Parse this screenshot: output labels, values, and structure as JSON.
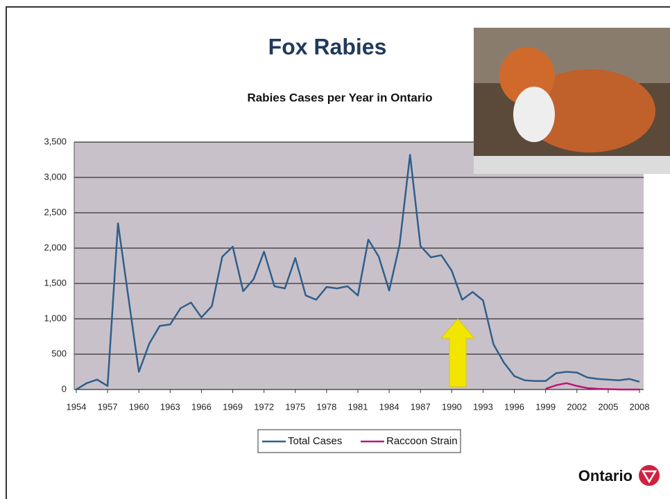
{
  "chart_data": {
    "type": "line",
    "title": "Fox Rabies",
    "subtitle": "Rabies Cases per Year in Ontario",
    "logo": "Ontario",
    "x": [
      1954,
      1955,
      1956,
      1957,
      1958,
      1959,
      1960,
      1961,
      1962,
      1963,
      1964,
      1965,
      1966,
      1967,
      1968,
      1969,
      1970,
      1971,
      1972,
      1973,
      1974,
      1975,
      1976,
      1977,
      1978,
      1979,
      1980,
      1981,
      1982,
      1983,
      1984,
      1985,
      1986,
      1987,
      1988,
      1989,
      1990,
      1991,
      1992,
      1993,
      1994,
      1995,
      1996,
      1997,
      1998,
      1999,
      2000,
      2001,
      2002,
      2003,
      2004,
      2005,
      2006,
      2007,
      2008
    ],
    "series": [
      {
        "name": "Total Cases",
        "color": "#2f5f8c",
        "values": [
          0,
          90,
          140,
          50,
          2350,
          1300,
          250,
          650,
          900,
          920,
          1150,
          1230,
          1020,
          1180,
          1880,
          2020,
          1390,
          1560,
          1950,
          1460,
          1430,
          1860,
          1330,
          1270,
          1450,
          1430,
          1460,
          1330,
          2120,
          1880,
          1400,
          2050,
          3320,
          2030,
          1870,
          1900,
          1680,
          1270,
          1380,
          1260,
          640,
          380,
          190,
          130,
          120,
          120,
          230,
          250,
          240,
          170,
          150,
          140,
          130,
          150,
          110
        ]
      },
      {
        "name": "Raccoon Strain",
        "color": "#c0127a",
        "x": [
          1999,
          2000,
          2001,
          2002,
          2003,
          2004,
          2005,
          2006,
          2007,
          2008
        ],
        "values": [
          10,
          60,
          90,
          50,
          20,
          10,
          5,
          0,
          0,
          0
        ]
      }
    ],
    "xlim": [
      1954,
      2008
    ],
    "xticks": [
      1954,
      1957,
      1960,
      1963,
      1966,
      1969,
      1972,
      1975,
      1978,
      1981,
      1984,
      1987,
      1990,
      1993,
      1996,
      1999,
      2002,
      2005,
      2008
    ],
    "ylim": [
      0,
      3500
    ],
    "yticks": [
      0,
      500,
      {
        "value": 1000,
        "label": "1,000"
      },
      {
        "value": 1500,
        "label": "1,500"
      },
      {
        "value": 2000,
        "label": "2,000"
      },
      {
        "value": 2500,
        "label": "2,500"
      },
      {
        "value": 3000,
        "label": "3,000"
      },
      {
        "value": 3500,
        "label": "3,500"
      }
    ],
    "grid": true
  }
}
